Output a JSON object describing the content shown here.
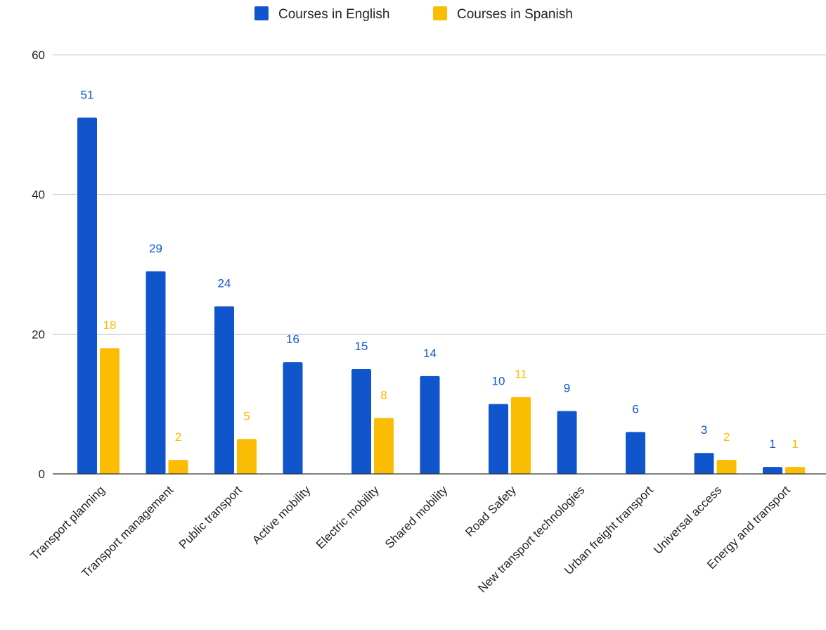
{
  "chart_data": {
    "type": "bar",
    "categories": [
      "Transport planning",
      "Transport management",
      "Public transport",
      "Active mobility",
      "Electric mobility",
      "Shared mobility",
      "Road Safety",
      "New transport technologies",
      "Urban freight transport",
      "Universal access",
      "Energy and transport"
    ],
    "series": [
      {
        "name": "Courses in English",
        "color": "#1155cc",
        "values": [
          51,
          29,
          24,
          16,
          15,
          14,
          10,
          9,
          6,
          3,
          1
        ]
      },
      {
        "name": "Courses in Spanish",
        "color": "#fbbc04",
        "values": [
          18,
          2,
          5,
          null,
          8,
          null,
          11,
          null,
          null,
          2,
          1
        ]
      }
    ],
    "ylim": [
      0,
      60
    ],
    "yticks": [
      0,
      20,
      40,
      60
    ],
    "grid": true,
    "legend_position": "top-center",
    "xlabel": "",
    "ylabel": ""
  }
}
